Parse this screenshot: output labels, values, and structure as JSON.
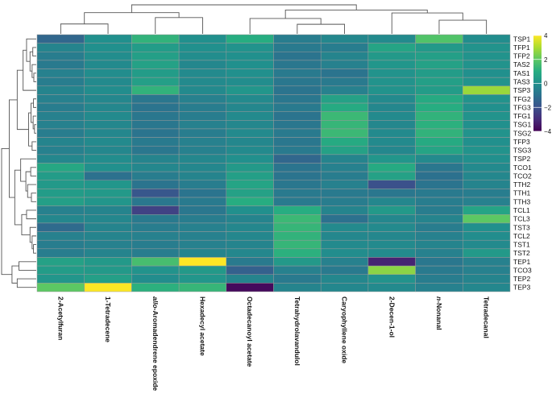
{
  "chart_data": {
    "type": "heatmap",
    "columns": [
      "2-Acetylfuran",
      "1-Tetradecene",
      "allo-Aromadendrene epoxide",
      "Hexadecyl acetate",
      "Octadecanoyl acetate",
      "Tetrahydrolavandulol",
      "Caryophyllene oxide",
      "2-Decen-1-ol",
      "n-Nonanal",
      "Tetradecanal"
    ],
    "rows": [
      "TSP1",
      "TFP1",
      "TFP2",
      "TAS2",
      "TAS1",
      "TAS3",
      "TSP3",
      "TFG2",
      "TFG3",
      "TFG1",
      "TSG1",
      "TSG2",
      "TFP3",
      "TSG3",
      "TSP2",
      "TCO1",
      "TCO2",
      "TTH2",
      "TTH1",
      "TTH3",
      "TCL1",
      "TCL3",
      "TST3",
      "TCL2",
      "TST1",
      "TST2",
      "TEP1",
      "TCO3",
      "TEP2",
      "TEP3"
    ],
    "values": [
      [
        -1.3,
        0.0,
        1.2,
        0.0,
        1.0,
        -0.6,
        -0.3,
        -0.2,
        1.8,
        -0.1
      ],
      [
        -0.4,
        0.0,
        0.4,
        0.0,
        0.1,
        -0.7,
        -0.6,
        0.7,
        0.3,
        0.1
      ],
      [
        -0.6,
        -0.1,
        0.5,
        -0.1,
        0.0,
        -0.9,
        -0.4,
        0.3,
        0.5,
        0.1
      ],
      [
        -0.7,
        -0.2,
        0.6,
        -0.3,
        0.0,
        -0.8,
        -0.5,
        0.2,
        0.6,
        0.1
      ],
      [
        -0.5,
        -0.1,
        0.4,
        -0.2,
        0.0,
        -0.7,
        -0.9,
        0.1,
        0.4,
        0.0
      ],
      [
        -0.6,
        -0.2,
        0.5,
        -0.2,
        -0.1,
        -0.8,
        -0.7,
        0.1,
        0.5,
        0.1
      ],
      [
        -0.4,
        -0.1,
        1.2,
        -0.2,
        0.2,
        -0.9,
        -0.5,
        0.1,
        0.4,
        2.8
      ],
      [
        -0.5,
        -0.3,
        -0.8,
        -0.5,
        -0.2,
        -0.8,
        0.6,
        -0.2,
        0.9,
        0.1
      ],
      [
        -0.6,
        -0.3,
        -0.9,
        -0.6,
        -0.3,
        -0.7,
        0.9,
        -0.3,
        1.0,
        0.0
      ],
      [
        -0.5,
        -0.2,
        -0.8,
        -0.6,
        -0.2,
        -0.9,
        1.4,
        -0.2,
        1.2,
        0.1
      ],
      [
        -0.5,
        -0.3,
        -0.8,
        -0.5,
        -0.3,
        -0.8,
        1.3,
        -0.3,
        1.1,
        0.0
      ],
      [
        -0.6,
        -0.3,
        -0.9,
        -0.6,
        -0.2,
        -0.7,
        1.4,
        -0.2,
        1.2,
        0.1
      ],
      [
        -0.4,
        -0.2,
        -0.7,
        -0.5,
        -0.3,
        -0.8,
        0.9,
        -0.2,
        0.9,
        0.0
      ],
      [
        -0.5,
        -0.3,
        -0.8,
        -0.5,
        -0.2,
        -0.7,
        0.6,
        -0.3,
        0.7,
        0.1
      ],
      [
        -0.3,
        -0.1,
        -0.4,
        -0.3,
        0.0,
        -1.3,
        -0.4,
        0.2,
        -0.2,
        0.0
      ],
      [
        0.8,
        0.0,
        -0.3,
        -0.3,
        0.3,
        -0.9,
        -0.5,
        0.9,
        -0.8,
        -0.2
      ],
      [
        0.4,
        -1.0,
        -0.6,
        -0.4,
        0.5,
        -0.9,
        -0.6,
        0.6,
        -1.0,
        -0.3
      ],
      [
        0.3,
        0.2,
        -0.9,
        -0.6,
        0.7,
        -0.8,
        -0.5,
        -2.0,
        -0.9,
        -0.4
      ],
      [
        0.4,
        0.3,
        -1.8,
        -0.9,
        0.6,
        -0.7,
        -0.7,
        -0.8,
        -0.7,
        -0.6
      ],
      [
        0.5,
        0.2,
        -0.8,
        -0.7,
        1.0,
        -0.7,
        -0.6,
        -0.3,
        -0.6,
        -0.5
      ],
      [
        -0.5,
        -0.4,
        -2.4,
        -0.8,
        0.0,
        1.0,
        -0.4,
        0.3,
        -0.6,
        0.7
      ],
      [
        -0.3,
        -0.3,
        -0.7,
        -0.6,
        -0.4,
        1.4,
        -1.0,
        -0.3,
        -0.4,
        2.0
      ],
      [
        -1.2,
        -0.4,
        -0.6,
        -0.5,
        -0.3,
        1.3,
        -0.2,
        -0.2,
        -0.6,
        0.0
      ],
      [
        -0.5,
        -0.4,
        -0.5,
        -0.5,
        -0.3,
        1.2,
        -0.3,
        -0.3,
        -0.5,
        -0.1
      ],
      [
        -0.6,
        -0.5,
        -0.6,
        -0.5,
        -0.4,
        1.3,
        -0.2,
        -0.2,
        -0.4,
        -0.2
      ],
      [
        -0.6,
        -0.4,
        -0.6,
        -0.4,
        -0.3,
        1.1,
        -0.1,
        -0.2,
        -0.5,
        0.3
      ],
      [
        0.6,
        0.3,
        1.6,
        4.0,
        -0.7,
        0.3,
        -0.5,
        -3.2,
        -0.8,
        -0.5
      ],
      [
        0.4,
        0.3,
        0.1,
        0.3,
        -1.5,
        -0.5,
        -0.7,
        2.6,
        -0.7,
        -0.5
      ],
      [
        0.2,
        0.5,
        -0.1,
        0.2,
        -0.4,
        -0.7,
        -0.3,
        0.1,
        -0.6,
        -0.4
      ],
      [
        2.0,
        4.0,
        1.1,
        1.3,
        -3.8,
        -0.4,
        -0.3,
        -0.2,
        -0.5,
        -0.3
      ]
    ],
    "color_scale": {
      "colormap": "viridis",
      "min": -4,
      "max": 4,
      "ticks": [
        4,
        2,
        0,
        -2,
        -4
      ]
    },
    "row_dendrogram": "left",
    "column_dendrogram": "top",
    "colors": {
      "low": "#440154",
      "mid": "#21918c",
      "high": "#fde725"
    }
  }
}
